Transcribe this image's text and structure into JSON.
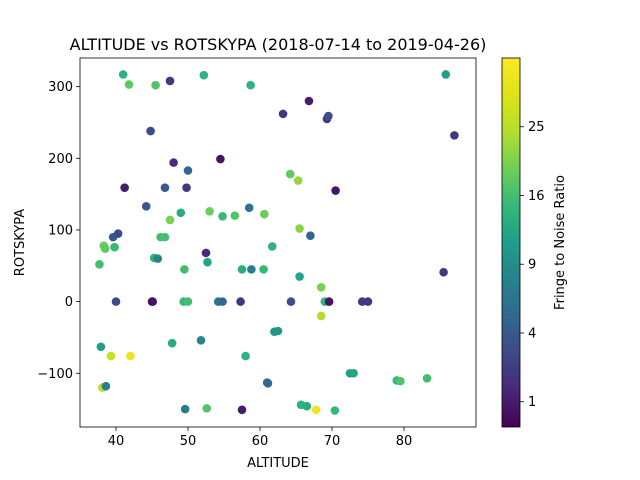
{
  "chart_data": {
    "type": "scatter",
    "title": "ALTITUDE vs ROTSKYPA (2018-07-14 to 2019-04-26)",
    "xlabel": "ALTITUDE",
    "ylabel": "ROTSKYPA",
    "xlim": [
      35,
      90
    ],
    "ylim": [
      -175,
      340
    ],
    "xticks": [
      40,
      50,
      60,
      70,
      80
    ],
    "yticks": [
      -100,
      0,
      100,
      200,
      300
    ],
    "grid": false,
    "colorbar": {
      "label": "Fringe to Noise Ratio",
      "colormap": "viridis",
      "scale": "sqrt",
      "range": [
        0.4,
        36
      ],
      "ticks": [
        1,
        4,
        9,
        16,
        25
      ]
    },
    "points": [
      {
        "x": 41.0,
        "y": 317,
        "c": 14
      },
      {
        "x": 41.8,
        "y": 303,
        "c": 18
      },
      {
        "x": 45.5,
        "y": 302,
        "c": 17
      },
      {
        "x": 47.5,
        "y": 308,
        "c": 2
      },
      {
        "x": 52.2,
        "y": 316,
        "c": 14
      },
      {
        "x": 58.7,
        "y": 302,
        "c": 14
      },
      {
        "x": 85.8,
        "y": 317,
        "c": 11
      },
      {
        "x": 63.2,
        "y": 262,
        "c": 2
      },
      {
        "x": 66.8,
        "y": 280,
        "c": 1
      },
      {
        "x": 69.3,
        "y": 255,
        "c": 2
      },
      {
        "x": 69.5,
        "y": 259,
        "c": 3
      },
      {
        "x": 87.0,
        "y": 232,
        "c": 2
      },
      {
        "x": 44.8,
        "y": 238,
        "c": 3
      },
      {
        "x": 48.0,
        "y": 194,
        "c": 1.5
      },
      {
        "x": 54.5,
        "y": 199,
        "c": 0.8
      },
      {
        "x": 49.8,
        "y": 159,
        "c": 2
      },
      {
        "x": 50.0,
        "y": 183,
        "c": 5
      },
      {
        "x": 46.8,
        "y": 159,
        "c": 4
      },
      {
        "x": 41.2,
        "y": 159,
        "c": 1
      },
      {
        "x": 64.2,
        "y": 178,
        "c": 18
      },
      {
        "x": 65.3,
        "y": 169,
        "c": 22
      },
      {
        "x": 70.5,
        "y": 155,
        "c": 0.8
      },
      {
        "x": 44.2,
        "y": 133,
        "c": 4
      },
      {
        "x": 49.0,
        "y": 124,
        "c": 13
      },
      {
        "x": 53.0,
        "y": 126,
        "c": 19
      },
      {
        "x": 54.8,
        "y": 119,
        "c": 15
      },
      {
        "x": 56.5,
        "y": 120,
        "c": 17
      },
      {
        "x": 58.5,
        "y": 131,
        "c": 6
      },
      {
        "x": 60.6,
        "y": 122,
        "c": 19
      },
      {
        "x": 47.5,
        "y": 114,
        "c": 20
      },
      {
        "x": 65.5,
        "y": 102,
        "c": 21
      },
      {
        "x": 39.6,
        "y": 90,
        "c": 4
      },
      {
        "x": 40.3,
        "y": 95,
        "c": 3
      },
      {
        "x": 38.3,
        "y": 78,
        "c": 19
      },
      {
        "x": 38.5,
        "y": 74,
        "c": 18
      },
      {
        "x": 39.8,
        "y": 76,
        "c": 15
      },
      {
        "x": 46.2,
        "y": 90,
        "c": 16
      },
      {
        "x": 46.8,
        "y": 90,
        "c": 16
      },
      {
        "x": 52.5,
        "y": 68,
        "c": 1.5
      },
      {
        "x": 61.7,
        "y": 77,
        "c": 14
      },
      {
        "x": 67.0,
        "y": 92,
        "c": 5
      },
      {
        "x": 37.7,
        "y": 52,
        "c": 16
      },
      {
        "x": 45.3,
        "y": 61,
        "c": 14
      },
      {
        "x": 45.8,
        "y": 60,
        "c": 8
      },
      {
        "x": 49.5,
        "y": 45,
        "c": 16
      },
      {
        "x": 52.7,
        "y": 55,
        "c": 12
      },
      {
        "x": 57.5,
        "y": 45,
        "c": 13
      },
      {
        "x": 58.8,
        "y": 45,
        "c": 7
      },
      {
        "x": 60.5,
        "y": 45,
        "c": 15
      },
      {
        "x": 65.5,
        "y": 35,
        "c": 12
      },
      {
        "x": 68.5,
        "y": 20,
        "c": 20
      },
      {
        "x": 85.5,
        "y": 41,
        "c": 2
      },
      {
        "x": 40.0,
        "y": 0,
        "c": 3
      },
      {
        "x": 45.0,
        "y": 0,
        "c": 0.8
      },
      {
        "x": 45.1,
        "y": 0,
        "c": 0.8
      },
      {
        "x": 49.4,
        "y": 0,
        "c": 15
      },
      {
        "x": 50.0,
        "y": 0,
        "c": 16
      },
      {
        "x": 54.2,
        "y": 0,
        "c": 6
      },
      {
        "x": 54.8,
        "y": 0,
        "c": 5
      },
      {
        "x": 57.3,
        "y": 0,
        "c": 2
      },
      {
        "x": 64.3,
        "y": 0,
        "c": 3
      },
      {
        "x": 69.0,
        "y": 0,
        "c": 14
      },
      {
        "x": 69.6,
        "y": 0,
        "c": 0.8
      },
      {
        "x": 74.2,
        "y": 0,
        "c": 2
      },
      {
        "x": 75.0,
        "y": 0,
        "c": 2
      },
      {
        "x": 68.5,
        "y": -20,
        "c": 24
      },
      {
        "x": 37.9,
        "y": -63,
        "c": 11
      },
      {
        "x": 47.8,
        "y": -58,
        "c": 13
      },
      {
        "x": 51.8,
        "y": -54,
        "c": 8
      },
      {
        "x": 62.0,
        "y": -42,
        "c": 10
      },
      {
        "x": 62.5,
        "y": -41,
        "c": 10
      },
      {
        "x": 39.3,
        "y": -76,
        "c": 27
      },
      {
        "x": 42.0,
        "y": -76,
        "c": 33
      },
      {
        "x": 58.0,
        "y": -76,
        "c": 14
      },
      {
        "x": 38.1,
        "y": -120,
        "c": 25
      },
      {
        "x": 38.6,
        "y": -118,
        "c": 7
      },
      {
        "x": 61.0,
        "y": -113,
        "c": 6
      },
      {
        "x": 61.1,
        "y": -114,
        "c": 5
      },
      {
        "x": 72.5,
        "y": -100,
        "c": 11
      },
      {
        "x": 73.0,
        "y": -100,
        "c": 12
      },
      {
        "x": 79.0,
        "y": -110,
        "c": 15
      },
      {
        "x": 79.5,
        "y": -111,
        "c": 17
      },
      {
        "x": 83.2,
        "y": -107,
        "c": 16
      },
      {
        "x": 49.6,
        "y": -150,
        "c": 7
      },
      {
        "x": 52.6,
        "y": -149,
        "c": 17
      },
      {
        "x": 57.5,
        "y": -151,
        "c": 1
      },
      {
        "x": 65.7,
        "y": -144,
        "c": 14
      },
      {
        "x": 66.5,
        "y": -146,
        "c": 13
      },
      {
        "x": 67.8,
        "y": -151,
        "c": 33
      },
      {
        "x": 70.4,
        "y": -152,
        "c": 15
      }
    ]
  }
}
